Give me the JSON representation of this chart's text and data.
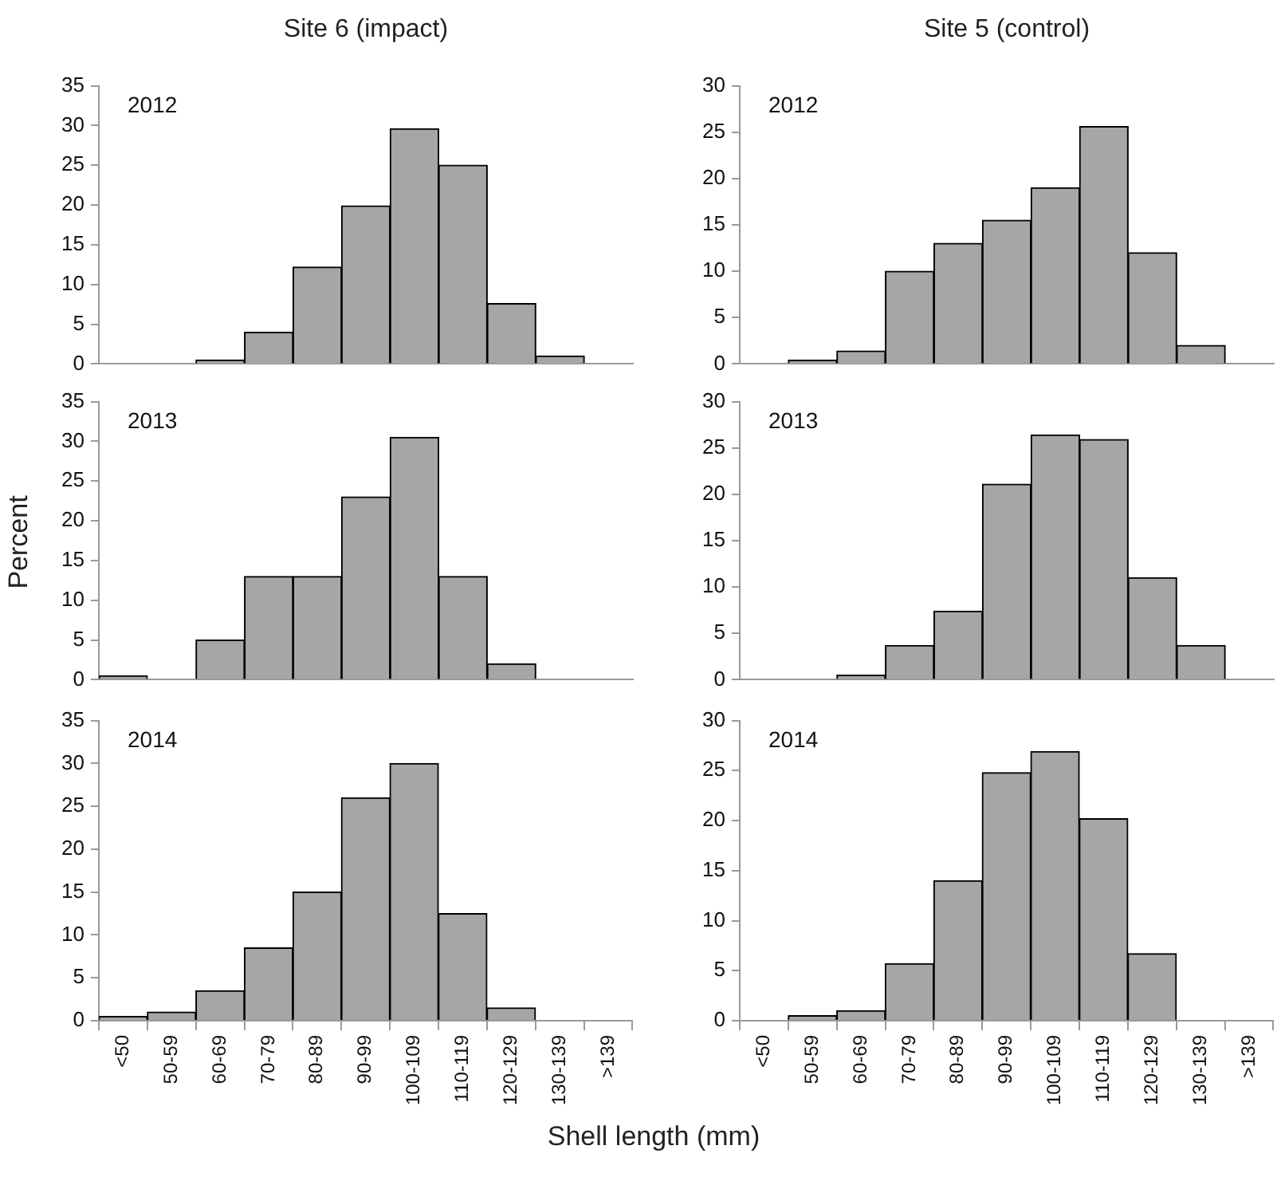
{
  "chart_data": [
    {
      "type": "bar",
      "title": "Site 6 (impact)",
      "annotations": [
        "2012"
      ],
      "categories": [
        null,
        null,
        null,
        null,
        null,
        null,
        null,
        null,
        null,
        null,
        null
      ],
      "values": [
        null,
        null,
        0.5,
        4,
        12.2,
        19.9,
        29.6,
        25,
        7.6,
        1,
        null
      ],
      "color": "#a6a6a6",
      "ylim": [
        0,
        35
      ],
      "yticks": [
        0,
        5,
        10,
        15,
        20,
        25,
        30,
        35
      ],
      "tick_labels": "y"
    },
    {
      "type": "bar",
      "title": "Site 5 (control)",
      "annotations": [
        "2012"
      ],
      "categories": [
        null,
        null,
        null,
        null,
        null,
        null,
        null,
        null,
        null,
        null,
        null
      ],
      "values": [
        null,
        0.4,
        1.4,
        10,
        13,
        15.5,
        19,
        25.6,
        12,
        2,
        null
      ],
      "color": "#a6a6a6",
      "ylim": [
        0,
        30
      ],
      "yticks": [
        0,
        5,
        10,
        15,
        20,
        25,
        30
      ],
      "tick_labels": "y"
    },
    {
      "type": "bar",
      "ylabel": "Percent",
      "annotations": [
        "2013"
      ],
      "categories": [
        null,
        null,
        null,
        null,
        null,
        null,
        null,
        null,
        null,
        null,
        null
      ],
      "values": [
        0.5,
        null,
        5,
        13,
        13,
        23,
        30.5,
        13,
        2,
        null,
        null
      ],
      "color": "#a6a6a6",
      "ylim": [
        0,
        35
      ],
      "yticks": [
        0,
        5,
        10,
        15,
        20,
        25,
        30,
        35
      ],
      "tick_labels": "y"
    },
    {
      "type": "bar",
      "annotations": [
        "2013"
      ],
      "categories": [
        null,
        null,
        null,
        null,
        null,
        null,
        null,
        null,
        null,
        null,
        null
      ],
      "values": [
        null,
        null,
        0.5,
        3.7,
        7.4,
        21.1,
        26.4,
        25.9,
        11,
        3.7,
        null
      ],
      "color": "#a6a6a6",
      "ylim": [
        0,
        30
      ],
      "yticks": [
        0,
        5,
        10,
        15,
        20,
        25,
        30
      ],
      "tick_labels": "y"
    },
    {
      "type": "bar",
      "xlabel": "Shell length (mm)",
      "annotations": [
        "2014"
      ],
      "categories": [
        "<50",
        "50-59",
        "60-69",
        "70-79",
        "80-89",
        "90-99",
        "100-109",
        "110-119",
        "120-129",
        "130-139",
        ">139"
      ],
      "values": [
        0.5,
        1,
        3.5,
        8.5,
        15,
        26,
        30,
        12.5,
        1.5,
        null,
        null
      ],
      "color": "#a6a6a6",
      "ylim": [
        0,
        35
      ],
      "yticks": [
        0,
        5,
        10,
        15,
        20,
        25,
        30,
        35
      ]
    },
    {
      "type": "bar",
      "annotations": [
        "2014"
      ],
      "categories": [
        "<50",
        "50-59",
        "60-69",
        "70-79",
        "80-89",
        "90-99",
        "100-109",
        "110-119",
        "120-129",
        "130-139",
        ">139"
      ],
      "values": [
        null,
        0.5,
        1,
        5.7,
        14,
        24.8,
        26.9,
        20.2,
        6.7,
        null,
        null
      ],
      "color": "#a6a6a6",
      "ylim": [
        0,
        30
      ],
      "yticks": [
        0,
        5,
        10,
        15,
        20,
        25,
        30
      ]
    }
  ]
}
